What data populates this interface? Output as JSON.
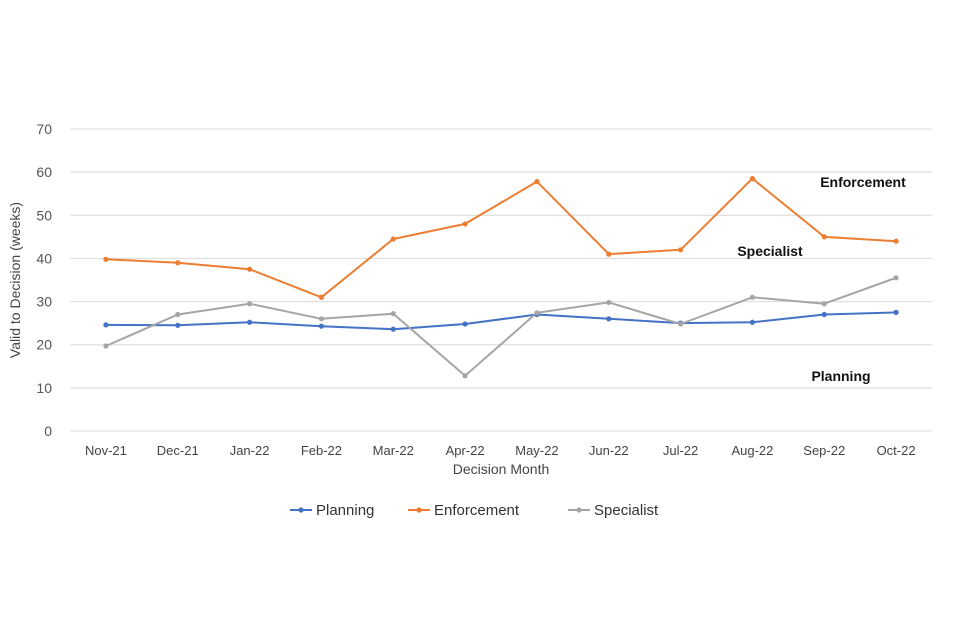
{
  "chart_data": {
    "type": "line",
    "title": "",
    "xlabel": "Decision Month",
    "ylabel": "Valid to Decision (weeks)",
    "ylim": [
      0,
      70
    ],
    "yticks": [
      0,
      10,
      20,
      30,
      40,
      50,
      60,
      70
    ],
    "grid": "horizontal",
    "legend_position": "bottom",
    "categories": [
      "Nov-21",
      "Dec-21",
      "Jan-22",
      "Feb-22",
      "Mar-22",
      "Apr-22",
      "May-22",
      "Jun-22",
      "Jul-22",
      "Aug-22",
      "Sep-22",
      "Oct-22"
    ],
    "series": [
      {
        "name": "Planning",
        "color": "#4472C4",
        "values": [
          24.6,
          24.5,
          25.2,
          24.3,
          23.6,
          24.8,
          27.0,
          26.0,
          25.0,
          25.2,
          27.0,
          27.5
        ]
      },
      {
        "name": "Enforcement",
        "color": "#ED7D31",
        "values": [
          39.8,
          39.0,
          37.5,
          31.0,
          44.5,
          48.0,
          57.8,
          41.0,
          42.0,
          58.5,
          45.0,
          44.0
        ]
      },
      {
        "name": "Specialist",
        "color": "#A5A5A5",
        "values": [
          19.7,
          27.0,
          29.5,
          26.0,
          27.2,
          12.8,
          27.4,
          29.8,
          24.8,
          31.0,
          29.5,
          35.5
        ]
      }
    ],
    "annotations": [
      {
        "text": "Enforcement",
        "series": "Enforcement"
      },
      {
        "text": "Specialist",
        "series": "Specialist"
      },
      {
        "text": "Planning",
        "series": "Planning"
      }
    ]
  }
}
